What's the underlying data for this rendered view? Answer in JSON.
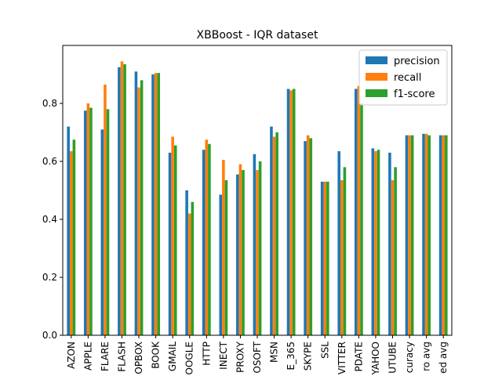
{
  "chart_data": {
    "type": "bar",
    "title": "XBBoost - IQR dataset",
    "xlabel": "",
    "ylabel": "",
    "ylim": [
      0,
      1.0
    ],
    "yticks": [
      "0.0",
      "0.2",
      "0.4",
      "0.6",
      "0.8"
    ],
    "grid": false,
    "legend_position": "top-right",
    "categories": [
      "AZON",
      "APPLE",
      "FLARE",
      "FLASH",
      "OPBOX",
      "BOOK",
      "GMAIL",
      "OOGLE",
      "HTTP",
      "INECT",
      "PROXY",
      "OSOFT",
      "MSN",
      "E_365",
      "SKYPE",
      "SSL",
      "VITTER",
      "PDATE",
      "YAHOO",
      "UTUBE",
      "curacy",
      "ro avg",
      "ed avg"
    ],
    "series": [
      {
        "name": "precision",
        "color": "#1f77b4",
        "values": [
          0.72,
          0.775,
          0.71,
          0.925,
          0.91,
          0.9,
          0.63,
          0.5,
          0.64,
          0.485,
          0.555,
          0.625,
          0.72,
          0.85,
          0.67,
          0.53,
          0.635,
          0.85,
          0.645,
          0.63,
          0.69,
          0.695,
          0.69
        ]
      },
      {
        "name": "recall",
        "color": "#ff7f0e",
        "values": [
          0.635,
          0.8,
          0.865,
          0.945,
          0.855,
          0.905,
          0.685,
          0.42,
          0.675,
          0.605,
          0.59,
          0.57,
          0.685,
          0.845,
          0.69,
          0.53,
          0.535,
          0.86,
          0.635,
          0.535,
          0.69,
          0.695,
          0.69
        ]
      },
      {
        "name": "f1-score",
        "color": "#2ca02c",
        "values": [
          0.675,
          0.785,
          0.78,
          0.935,
          0.88,
          0.905,
          0.655,
          0.46,
          0.66,
          0.535,
          0.57,
          0.6,
          0.7,
          0.85,
          0.68,
          0.53,
          0.58,
          0.8,
          0.64,
          0.58,
          0.69,
          0.69,
          0.69
        ]
      }
    ]
  }
}
